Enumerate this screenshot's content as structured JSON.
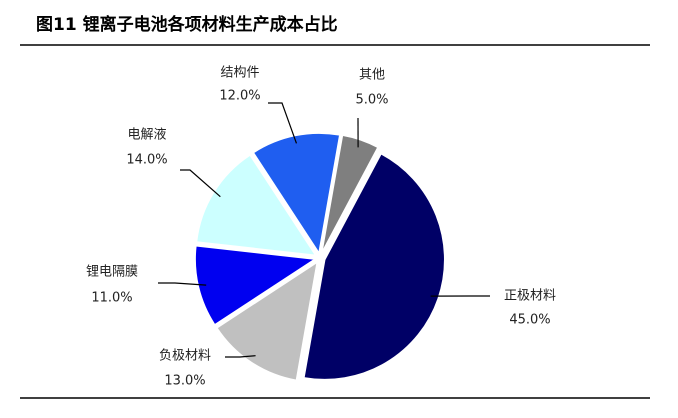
{
  "chart_data": {
    "type": "pie",
    "title": "图11 锂离子电池各项材料生产成本占比",
    "categories": [
      "正极材料",
      "负极材料",
      "锂电隔膜",
      "电解液",
      "结构件",
      "其他"
    ],
    "values": [
      45.0,
      13.0,
      11.0,
      14.0,
      12.0,
      5.0
    ],
    "value_labels": [
      "45.0%",
      "13.0%",
      "11.0%",
      "14.0%",
      "12.0%",
      "5.0%"
    ],
    "colors": [
      "#000066",
      "#c0c0c0",
      "#0000f0",
      "#ccffff",
      "#1f5ef0",
      "#7f7f7f"
    ]
  }
}
